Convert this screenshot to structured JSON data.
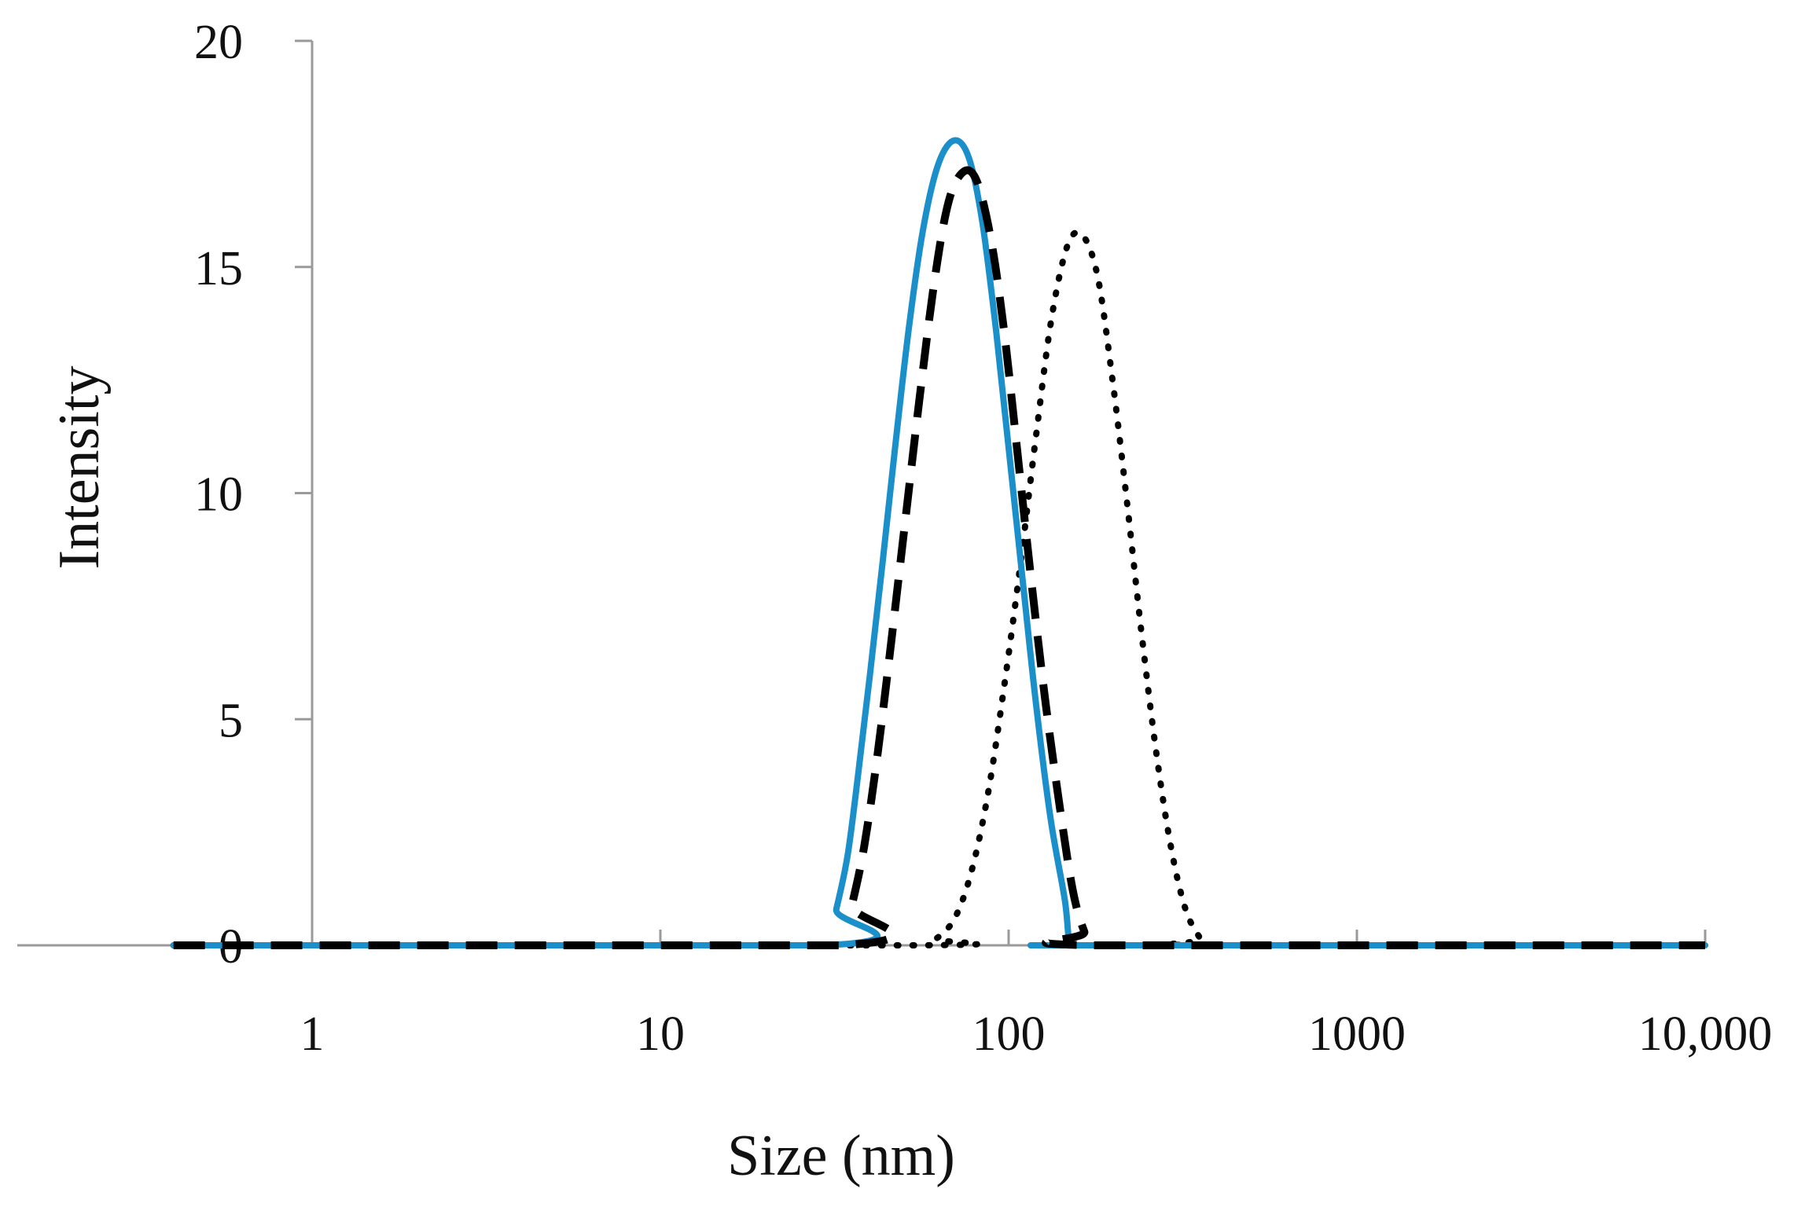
{
  "chart_data": {
    "type": "line",
    "xlabel": "Size (nm)",
    "ylabel": "Intensity",
    "xscale": "log",
    "xlim": [
      0.4,
      10000
    ],
    "ylim": [
      0,
      20
    ],
    "x_ticks": [
      1,
      10,
      100,
      1000,
      10000
    ],
    "x_tick_labels": [
      "1",
      "10",
      "100",
      "1000",
      "10,000"
    ],
    "y_ticks": [
      0,
      5,
      10,
      15,
      20
    ],
    "y_tick_labels": [
      "0",
      "5",
      "10",
      "15",
      "20"
    ],
    "grid": false,
    "legend": "none",
    "series": [
      {
        "style": "solid",
        "color": "#1a8fc9",
        "x": [
          0.4,
          30,
          32,
          34.5,
          37,
          40,
          43.5,
          47.5,
          52,
          57,
          63,
          70,
          77,
          84,
          92,
          100,
          110,
          120,
          132,
          145,
          150,
          160,
          10000
        ],
        "y": [
          0,
          0,
          0.8,
          2.0,
          3.8,
          6.0,
          8.5,
          11.2,
          13.8,
          15.9,
          17.3,
          17.8,
          17.4,
          16.0,
          13.6,
          11.0,
          8.0,
          5.3,
          2.8,
          1.0,
          0,
          0,
          0
        ]
      },
      {
        "style": "dashed",
        "color": "#000000",
        "x": [
          0.4,
          33,
          35.5,
          38.5,
          42,
          46,
          50.5,
          55.5,
          61,
          67,
          74,
          81,
          89,
          97,
          106,
          116,
          127,
          140,
          153,
          165,
          175,
          10000
        ],
        "y": [
          0,
          0,
          0.9,
          2.2,
          4.2,
          6.7,
          9.4,
          12.1,
          14.6,
          16.4,
          17.1,
          16.9,
          15.6,
          13.6,
          10.9,
          8.1,
          5.5,
          3.1,
          1.2,
          0.3,
          0,
          0
        ]
      },
      {
        "style": "dotted",
        "color": "#000000",
        "x": [
          0.4,
          55,
          62,
          70,
          78,
          87,
          97,
          108,
          120,
          133,
          148,
          163,
          180,
          198,
          218,
          240,
          265,
          292,
          322,
          355,
          370,
          10000
        ],
        "y": [
          0,
          0,
          0.15,
          0.6,
          1.6,
          3.3,
          5.7,
          8.4,
          11.3,
          13.9,
          15.5,
          15.7,
          14.8,
          12.6,
          9.9,
          7.0,
          4.3,
          2.2,
          0.8,
          0.15,
          0,
          0
        ]
      }
    ]
  }
}
